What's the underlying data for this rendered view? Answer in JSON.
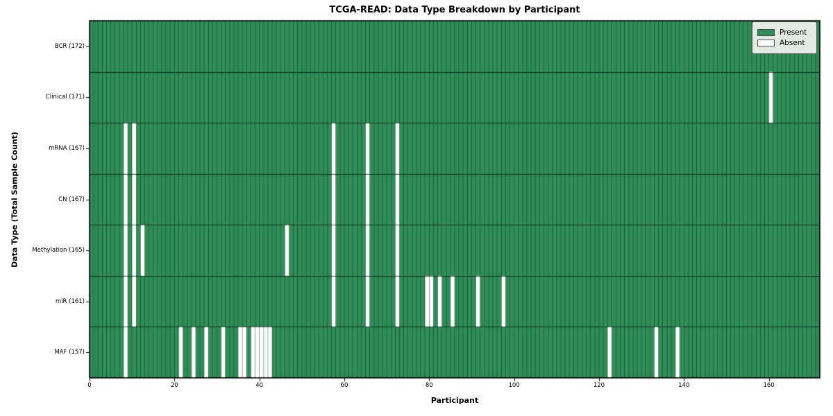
{
  "title": "TCGA-READ: Data Type Breakdown by Participant",
  "xlabel": "Participant",
  "ylabel": "Data Type (Total Sample Count)",
  "legend": {
    "present_label": "Present",
    "absent_label": "Absent"
  },
  "chart_data": {
    "type": "heatmap",
    "title": "TCGA-READ: Data Type Breakdown by Participant",
    "xlabel": "Participant",
    "ylabel": "Data Type (Total Sample Count)",
    "n_participants": 172,
    "xlim": [
      0,
      172
    ],
    "x_ticks": [
      0,
      20,
      40,
      60,
      80,
      100,
      120,
      140,
      160
    ],
    "grid": true,
    "legend_position": "upper right",
    "legend_entries": [
      "Present",
      "Absent"
    ],
    "rows": [
      {
        "label": "BCR (172)",
        "data_type": "BCR",
        "total_sample_count": 172,
        "absent_participants": []
      },
      {
        "label": "Clinical (171)",
        "data_type": "Clinical",
        "total_sample_count": 171,
        "absent_participants": [
          160
        ]
      },
      {
        "label": "mRNA (167)",
        "data_type": "mRNA",
        "total_sample_count": 167,
        "absent_participants": [
          8,
          10,
          57,
          65,
          72
        ]
      },
      {
        "label": "CN (167)",
        "data_type": "CN",
        "total_sample_count": 167,
        "absent_participants": [
          8,
          10,
          57,
          65,
          72
        ]
      },
      {
        "label": "Methylation (165)",
        "data_type": "Methylation",
        "total_sample_count": 165,
        "absent_participants": [
          8,
          10,
          12,
          46,
          57,
          65,
          72
        ]
      },
      {
        "label": "miR (161)",
        "data_type": "miR",
        "total_sample_count": 161,
        "absent_participants": [
          8,
          10,
          57,
          65,
          72,
          79,
          80,
          82,
          85,
          91,
          97
        ]
      },
      {
        "label": "MAF (157)",
        "data_type": "MAF",
        "total_sample_count": 157,
        "absent_participants": [
          8,
          21,
          24,
          27,
          31,
          35,
          36,
          38,
          39,
          40,
          41,
          42,
          122,
          133,
          138
        ]
      }
    ],
    "colors": {
      "present": "#2f8e58",
      "absent": "#ffffff",
      "cell_edge": "rgba(0,0,0,0.40)",
      "row_divider": "rgba(0,0,0,0.65)",
      "frame": "#000000",
      "legend_bg": "#e2ebe3"
    }
  }
}
